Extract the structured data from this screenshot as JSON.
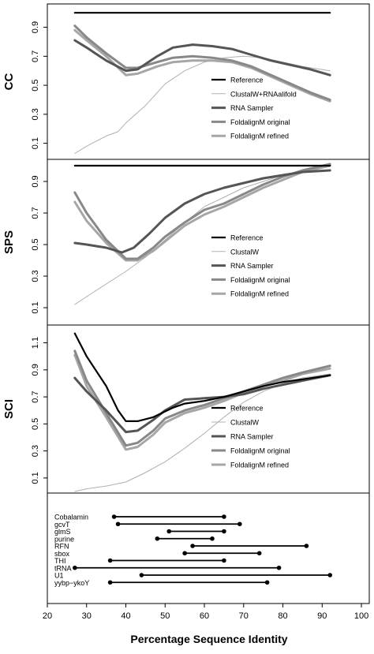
{
  "xlabel": "Percentage Sequence Identity",
  "x_ticks": [
    20,
    30,
    40,
    50,
    60,
    70,
    80,
    90,
    100
  ],
  "xlim": [
    20,
    102
  ],
  "colors": {
    "reference": "#000000",
    "clustal": "#b0b0b0",
    "rnasampler": "#555555",
    "fold_original": "#888888",
    "fold_refined": "#a6a6a6",
    "ranges": "#000000",
    "axis": "#000000"
  },
  "chart_data": [
    {
      "type": "line",
      "ylabel": "CC",
      "ylim": [
        0.0,
        1.05
      ],
      "y_ticks": [
        0.1,
        0.3,
        0.5,
        0.7,
        0.9
      ],
      "legend_position": "bottom-right",
      "series": [
        {
          "key": "reference",
          "name": "Reference",
          "x": [
            27,
            92
          ],
          "y": [
            1.0,
            1.0
          ]
        },
        {
          "key": "clustal",
          "name": "ClustalW+RNAalifold",
          "x": [
            27,
            30,
            35,
            38,
            40,
            45,
            50,
            55,
            60,
            65,
            70,
            75,
            80,
            85,
            92
          ],
          "y": [
            0.03,
            0.08,
            0.15,
            0.18,
            0.24,
            0.36,
            0.51,
            0.6,
            0.66,
            0.69,
            0.7,
            0.69,
            0.66,
            0.63,
            0.6
          ]
        },
        {
          "key": "rnasampler",
          "name": "RNA Sampler",
          "x": [
            27,
            30,
            35,
            40,
            43,
            48,
            52,
            57,
            62,
            67,
            72,
            77,
            82,
            87,
            92
          ],
          "y": [
            0.81,
            0.76,
            0.67,
            0.6,
            0.61,
            0.7,
            0.76,
            0.78,
            0.77,
            0.75,
            0.71,
            0.67,
            0.64,
            0.61,
            0.57
          ]
        },
        {
          "key": "fold_original",
          "name": "FoldalignM original",
          "x": [
            27,
            30,
            35,
            40,
            43,
            48,
            52,
            57,
            62,
            67,
            72,
            77,
            82,
            87,
            92
          ],
          "y": [
            0.91,
            0.83,
            0.72,
            0.62,
            0.62,
            0.66,
            0.69,
            0.7,
            0.69,
            0.67,
            0.63,
            0.57,
            0.51,
            0.45,
            0.4
          ]
        },
        {
          "key": "fold_refined",
          "name": "FoldalignM refined",
          "x": [
            27,
            30,
            35,
            40,
            43,
            48,
            52,
            57,
            62,
            67,
            72,
            77,
            82,
            87,
            92
          ],
          "y": [
            0.88,
            0.81,
            0.7,
            0.57,
            0.58,
            0.63,
            0.66,
            0.67,
            0.67,
            0.66,
            0.62,
            0.56,
            0.5,
            0.44,
            0.39
          ]
        }
      ]
    },
    {
      "type": "line",
      "ylabel": "SPS",
      "ylim": [
        0.0,
        1.03
      ],
      "y_ticks": [
        0.1,
        0.3,
        0.5,
        0.7,
        0.9
      ],
      "legend_position": "bottom-right",
      "series": [
        {
          "key": "reference",
          "name": "Reference",
          "x": [
            27,
            92
          ],
          "y": [
            1.0,
            1.0
          ]
        },
        {
          "key": "clustal",
          "name": "ClustalW",
          "x": [
            27,
            30,
            35,
            40,
            45,
            50,
            55,
            60,
            65,
            70,
            75,
            80,
            85,
            92
          ],
          "y": [
            0.12,
            0.17,
            0.25,
            0.33,
            0.42,
            0.53,
            0.64,
            0.74,
            0.8,
            0.86,
            0.9,
            0.94,
            0.97,
            1.0
          ]
        },
        {
          "key": "rnasampler",
          "name": "RNA Sampler",
          "x": [
            27,
            30,
            35,
            39,
            42,
            46,
            50,
            55,
            60,
            65,
            70,
            75,
            80,
            85,
            92
          ],
          "y": [
            0.51,
            0.5,
            0.48,
            0.45,
            0.48,
            0.57,
            0.67,
            0.76,
            0.82,
            0.86,
            0.89,
            0.92,
            0.94,
            0.96,
            0.97
          ]
        },
        {
          "key": "fold_original",
          "name": "FoldalignM original",
          "x": [
            27,
            30,
            35,
            40,
            43,
            47,
            50,
            55,
            60,
            65,
            70,
            75,
            80,
            85,
            92
          ],
          "y": [
            0.83,
            0.7,
            0.53,
            0.41,
            0.41,
            0.48,
            0.55,
            0.64,
            0.72,
            0.76,
            0.82,
            0.88,
            0.93,
            0.97,
            1.01
          ]
        },
        {
          "key": "fold_refined",
          "name": "FoldalignM refined",
          "x": [
            27,
            30,
            35,
            40,
            43,
            47,
            50,
            55,
            60,
            65,
            70,
            75,
            80,
            85,
            92
          ],
          "y": [
            0.77,
            0.65,
            0.51,
            0.4,
            0.4,
            0.46,
            0.52,
            0.62,
            0.69,
            0.74,
            0.8,
            0.86,
            0.91,
            0.96,
            1.0
          ]
        }
      ]
    },
    {
      "type": "line",
      "ylabel": "SCI",
      "ylim": [
        0.0,
        1.22
      ],
      "y_ticks": [
        0.1,
        0.3,
        0.5,
        0.7,
        0.9,
        1.1
      ],
      "legend_position": "bottom-right",
      "series": [
        {
          "key": "reference",
          "name": "Reference",
          "x": [
            27,
            30,
            35,
            38,
            40,
            43,
            47,
            52,
            55,
            60,
            65,
            70,
            75,
            80,
            85,
            92
          ],
          "y": [
            1.17,
            1.0,
            0.78,
            0.6,
            0.52,
            0.52,
            0.55,
            0.62,
            0.65,
            0.67,
            0.7,
            0.74,
            0.78,
            0.81,
            0.83,
            0.86
          ]
        },
        {
          "key": "clustal",
          "name": "ClustalW",
          "x": [
            27,
            30,
            35,
            40,
            45,
            50,
            55,
            60,
            65,
            70,
            75,
            80,
            85,
            92
          ],
          "y": [
            0.0,
            0.02,
            0.04,
            0.07,
            0.14,
            0.22,
            0.32,
            0.43,
            0.55,
            0.66,
            0.74,
            0.8,
            0.84,
            0.87
          ]
        },
        {
          "key": "rnasampler",
          "name": "RNA Sampler",
          "x": [
            27,
            30,
            35,
            40,
            43,
            47,
            50,
            55,
            60,
            65,
            70,
            75,
            80,
            85,
            92
          ],
          "y": [
            0.84,
            0.74,
            0.6,
            0.44,
            0.45,
            0.53,
            0.6,
            0.68,
            0.69,
            0.7,
            0.72,
            0.76,
            0.79,
            0.82,
            0.86
          ]
        },
        {
          "key": "fold_original",
          "name": "FoldalignM original",
          "x": [
            27,
            30,
            35,
            40,
            43,
            47,
            50,
            55,
            60,
            65,
            70,
            75,
            80,
            85,
            92
          ],
          "y": [
            1.04,
            0.82,
            0.58,
            0.34,
            0.36,
            0.45,
            0.54,
            0.6,
            0.64,
            0.69,
            0.74,
            0.79,
            0.84,
            0.88,
            0.93
          ]
        },
        {
          "key": "fold_refined",
          "name": "FoldalignM refined",
          "x": [
            27,
            30,
            35,
            40,
            43,
            47,
            50,
            55,
            60,
            65,
            70,
            75,
            80,
            85,
            92
          ],
          "y": [
            1.01,
            0.78,
            0.55,
            0.31,
            0.33,
            0.42,
            0.51,
            0.58,
            0.62,
            0.67,
            0.73,
            0.78,
            0.82,
            0.87,
            0.91
          ]
        }
      ]
    },
    {
      "type": "range",
      "ylabel": "",
      "categories": [
        "Cobalamin",
        "gcvT",
        "glmS",
        "purine",
        "RFN",
        "sbox",
        "THI",
        "tRNA",
        "U1",
        "yybp−ykoY"
      ],
      "ranges": [
        [
          37,
          65
        ],
        [
          38,
          69
        ],
        [
          51,
          65
        ],
        [
          48,
          62
        ],
        [
          57,
          86
        ],
        [
          55,
          74
        ],
        [
          36,
          65
        ],
        [
          27,
          79
        ],
        [
          44,
          92
        ],
        [
          36,
          76
        ]
      ]
    }
  ]
}
